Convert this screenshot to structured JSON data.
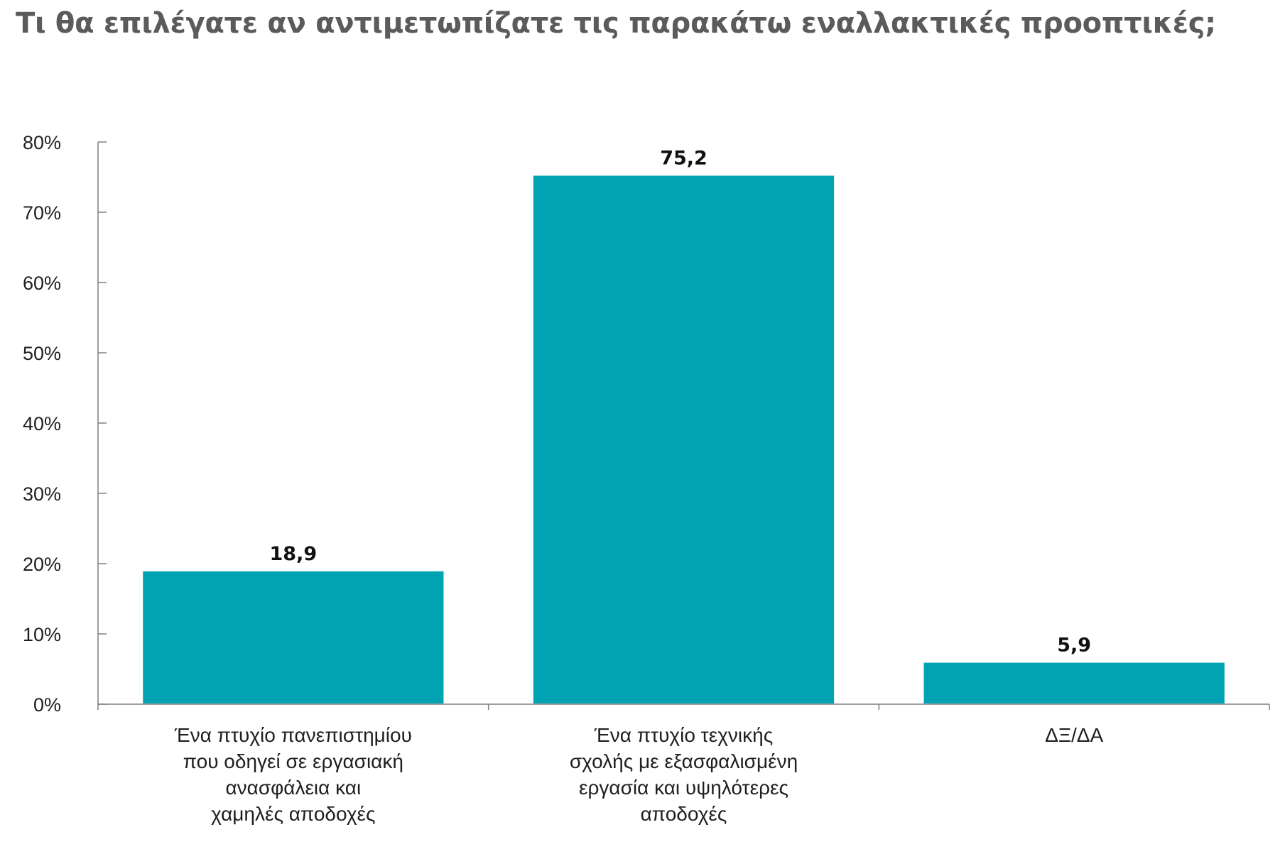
{
  "chart_data": {
    "type": "bar",
    "title": "Τι θα επιλέγατε αν αντιμετωπίζατε τις παρακάτω εναλλακτικές προοπτικές;",
    "categories": [
      [
        "Ένα πτυχίο πανεπιστημίου",
        "που οδηγεί σε εργασιακή",
        "ανασφάλεια και",
        "χαμηλές αποδοχές"
      ],
      [
        "Ένα πτυχίο τεχνικής",
        "σχολής με εξασφαλισμένη",
        "εργασία και υψηλότερες",
        "αποδοχές"
      ],
      [
        "ΔΞ/ΔΑ"
      ]
    ],
    "values": [
      18.9,
      75.2,
      5.9
    ],
    "value_labels": [
      "18,9",
      "75,2",
      "5,9"
    ],
    "ylim": [
      0,
      80
    ],
    "y_ticks": [
      0,
      10,
      20,
      30,
      40,
      50,
      60,
      70,
      80
    ],
    "y_tick_labels": [
      "0%",
      "10%",
      "20%",
      "30%",
      "40%",
      "50%",
      "60%",
      "70%",
      "80%"
    ],
    "xlabel": "",
    "ylabel": "",
    "grid": false,
    "legend": "none",
    "bar_color": "#00a3b1",
    "axis_color": "#7f7f7f"
  }
}
